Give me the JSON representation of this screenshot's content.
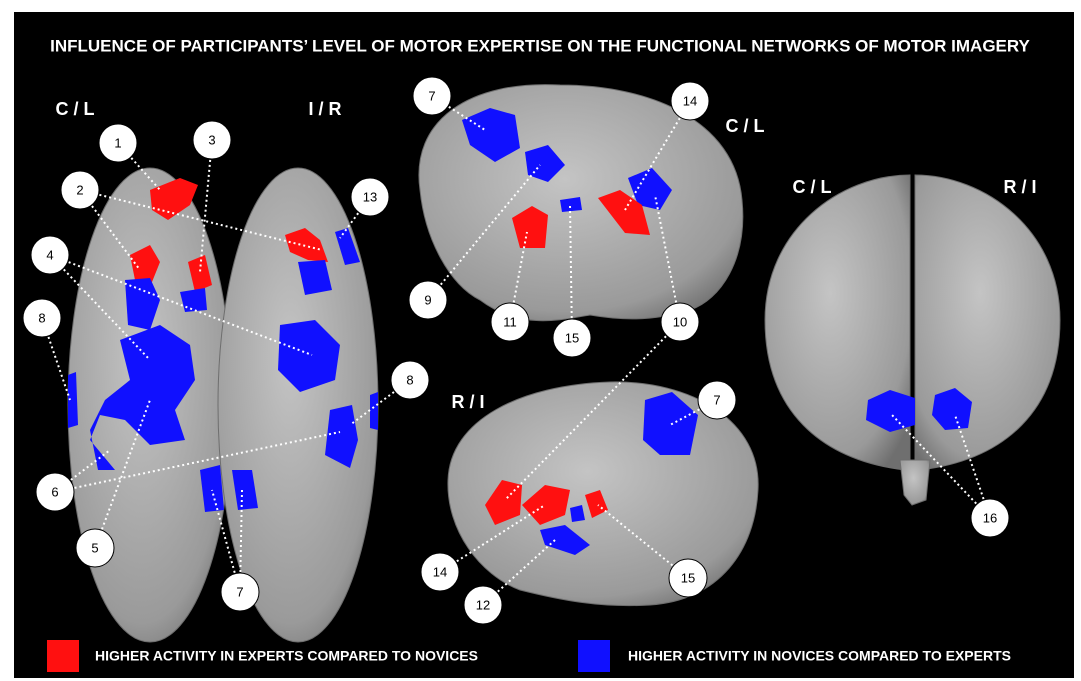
{
  "title": "INFLUENCE OF PARTICIPANTS’ LEVEL OF MOTOR EXPERTISE ON THE FUNCTIONAL NETWORKS OF MOTOR IMAGERY",
  "views": [
    {
      "labels": [
        "C / L",
        "I / R"
      ],
      "callouts": [
        "1",
        "2",
        "3",
        "13",
        "4",
        "8",
        "8",
        "6",
        "5",
        "7"
      ]
    },
    {
      "labels": [
        "C / L"
      ],
      "callouts": [
        "7",
        "14",
        "9",
        "11",
        "15",
        "10"
      ]
    },
    {
      "labels": [
        "R / I"
      ],
      "callouts": [
        "7",
        "14",
        "12",
        "15"
      ]
    },
    {
      "labels": [
        "C / L",
        "R / I"
      ],
      "callouts": [
        "16"
      ]
    }
  ],
  "legend": [
    {
      "label": "HIGHER ACTIVITY IN EXPERTS COMPARED TO NOVICES",
      "color": "#ff1010"
    },
    {
      "label": "HIGHER ACTIVITY IN NOVICES COMPARED TO EXPERTS",
      "color": "#1010ff"
    }
  ]
}
